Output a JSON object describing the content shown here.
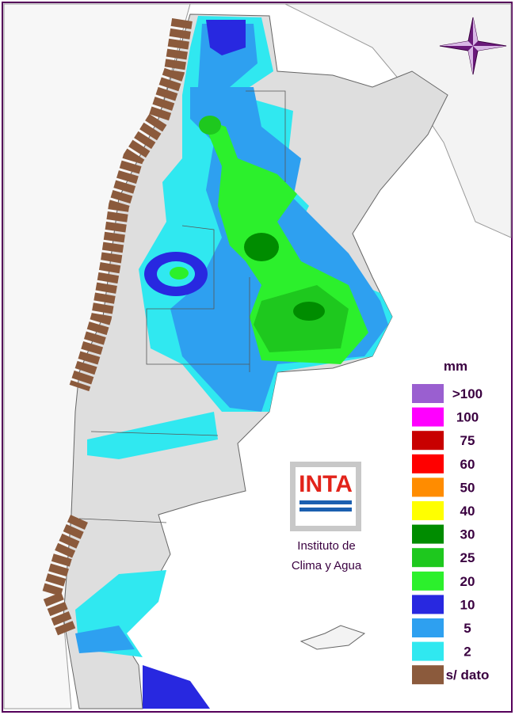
{
  "legend": {
    "unit": "mm",
    "items": [
      {
        "label": ">100",
        "color": "#9a5fd0"
      },
      {
        "label": "100",
        "color": "#ff00ff"
      },
      {
        "label": "75",
        "color": "#c80000"
      },
      {
        "label": "60",
        "color": "#ff0000"
      },
      {
        "label": "50",
        "color": "#ff8c00"
      },
      {
        "label": "40",
        "color": "#ffff00"
      },
      {
        "label": "30",
        "color": "#008c00"
      },
      {
        "label": "25",
        "color": "#1ec81e"
      },
      {
        "label": "20",
        "color": "#2cf02c"
      },
      {
        "label": "10",
        "color": "#2828e0"
      },
      {
        "label": "5",
        "color": "#2ea0f0"
      },
      {
        "label": "2",
        "color": "#30e8f0"
      },
      {
        "label": "s/ dato",
        "color": "#8b5a3c"
      }
    ]
  },
  "logo": {
    "mark": "INTA",
    "caption": [
      "Instituto de",
      "Clima y Agua"
    ]
  }
}
